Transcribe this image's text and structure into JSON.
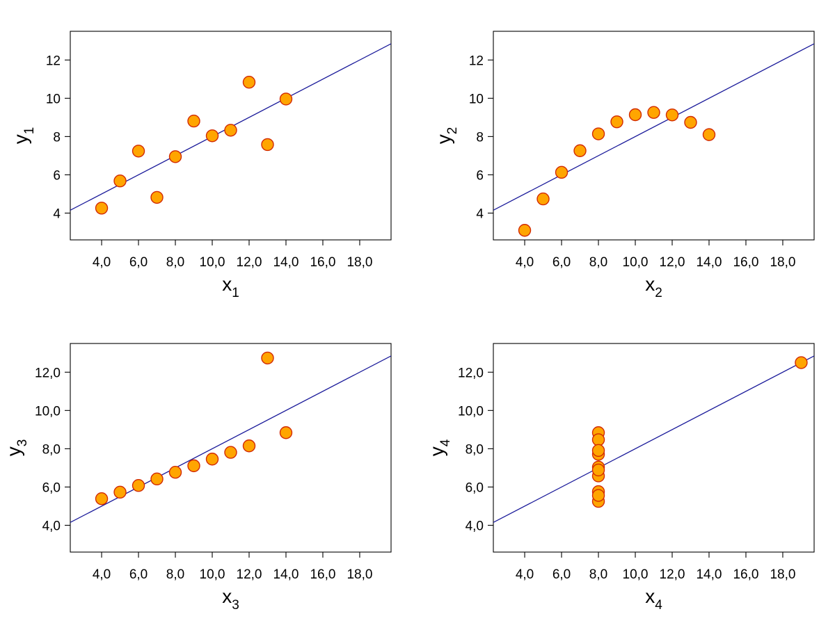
{
  "chart_data": [
    {
      "type": "scatter",
      "xlabel": "x",
      "xlabel_sub": "1",
      "ylabel": "y",
      "ylabel_sub": "1",
      "xlim": [
        2.3,
        19.7
      ],
      "ylim": [
        2.6,
        13.5
      ],
      "xticks": [
        "4,0",
        "6,0",
        "8,0",
        "10,0",
        "12,0",
        "14,0",
        "16,0",
        "18,0"
      ],
      "xtick_values": [
        4,
        6,
        8,
        10,
        12,
        14,
        16,
        18
      ],
      "yticks": [
        "4",
        "6",
        "8",
        "10",
        "12"
      ],
      "ytick_values": [
        4,
        6,
        8,
        10,
        12
      ],
      "x": [
        10,
        8,
        13,
        9,
        11,
        14,
        6,
        4,
        12,
        7,
        5
      ],
      "y": [
        8.04,
        6.95,
        7.58,
        8.81,
        8.33,
        9.96,
        7.24,
        4.26,
        10.84,
        4.82,
        5.68
      ],
      "fit": {
        "intercept": 3.0,
        "slope": 0.5
      },
      "grid": false
    },
    {
      "type": "scatter",
      "xlabel": "x",
      "xlabel_sub": "2",
      "ylabel": "y",
      "ylabel_sub": "2",
      "xlim": [
        2.3,
        19.7
      ],
      "ylim": [
        2.6,
        13.5
      ],
      "xticks": [
        "4,0",
        "6,0",
        "8,0",
        "10,0",
        "12,0",
        "14,0",
        "16,0",
        "18,0"
      ],
      "xtick_values": [
        4,
        6,
        8,
        10,
        12,
        14,
        16,
        18
      ],
      "yticks": [
        "4",
        "6",
        "8",
        "10",
        "12"
      ],
      "ytick_values": [
        4,
        6,
        8,
        10,
        12
      ],
      "x": [
        10,
        8,
        13,
        9,
        11,
        14,
        6,
        4,
        12,
        7,
        5
      ],
      "y": [
        9.14,
        8.14,
        8.74,
        8.77,
        9.26,
        8.1,
        6.13,
        3.1,
        9.13,
        7.26,
        4.74
      ],
      "fit": {
        "intercept": 3.0,
        "slope": 0.5
      },
      "grid": false
    },
    {
      "type": "scatter",
      "xlabel": "x",
      "xlabel_sub": "3",
      "ylabel": "y",
      "ylabel_sub": "3",
      "xlim": [
        2.3,
        19.7
      ],
      "ylim": [
        2.6,
        13.5
      ],
      "xticks": [
        "4,0",
        "6,0",
        "8,0",
        "10,0",
        "12,0",
        "14,0",
        "16,0",
        "18,0"
      ],
      "xtick_values": [
        4,
        6,
        8,
        10,
        12,
        14,
        16,
        18
      ],
      "yticks": [
        "4,0",
        "6,0",
        "8,0",
        "10,0",
        "12,0"
      ],
      "ytick_values": [
        4,
        6,
        8,
        10,
        12
      ],
      "x": [
        10,
        8,
        13,
        9,
        11,
        14,
        6,
        4,
        12,
        7,
        5
      ],
      "y": [
        7.46,
        6.77,
        12.74,
        7.11,
        7.81,
        8.84,
        6.08,
        5.39,
        8.15,
        6.42,
        5.73
      ],
      "fit": {
        "intercept": 3.0,
        "slope": 0.5
      },
      "grid": false
    },
    {
      "type": "scatter",
      "xlabel": "x",
      "xlabel_sub": "4",
      "ylabel": "y",
      "ylabel_sub": "4",
      "xlim": [
        2.3,
        19.7
      ],
      "ylim": [
        2.6,
        13.5
      ],
      "xticks": [
        "4,0",
        "6,0",
        "8,0",
        "10,0",
        "12,0",
        "14,0",
        "16,0",
        "18,0"
      ],
      "xtick_values": [
        4,
        6,
        8,
        10,
        12,
        14,
        16,
        18
      ],
      "yticks": [
        "4,0",
        "6,0",
        "8,0",
        "10,0",
        "12,0"
      ],
      "ytick_values": [
        4,
        6,
        8,
        10,
        12
      ],
      "x": [
        8,
        8,
        8,
        8,
        8,
        8,
        8,
        19,
        8,
        8,
        8
      ],
      "y": [
        6.58,
        5.76,
        7.71,
        8.84,
        8.47,
        7.04,
        5.25,
        12.5,
        5.56,
        7.91,
        6.89
      ],
      "fit": {
        "intercept": 3.0,
        "slope": 0.5
      },
      "grid": false
    }
  ],
  "colors": {
    "point_fill": "#ffa500",
    "point_stroke": "#d22a00",
    "fit_line": "#1a1a9a",
    "axis": "#000000"
  }
}
